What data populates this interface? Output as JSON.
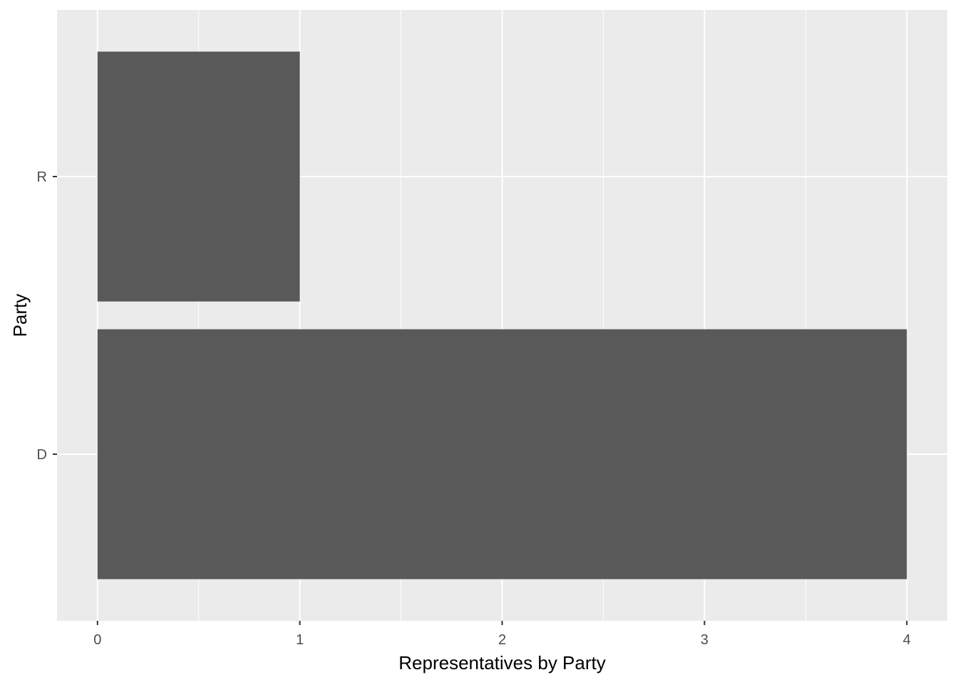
{
  "chart_data": {
    "type": "bar",
    "orientation": "horizontal",
    "categories": [
      "D",
      "R"
    ],
    "values": [
      4,
      1
    ],
    "xlabel": "Representatives by Party",
    "ylabel": "Party",
    "xlim": [
      -0.2,
      4.2
    ],
    "xticks": [
      "0",
      "1",
      "2",
      "3",
      "4"
    ],
    "grid": true,
    "legend": "none",
    "colors": {
      "bar": "#595959",
      "panel": "#ebebeb",
      "grid_major": "#ffffff",
      "tick_label": "#4d4d4d",
      "tick_mark": "#333333"
    }
  }
}
